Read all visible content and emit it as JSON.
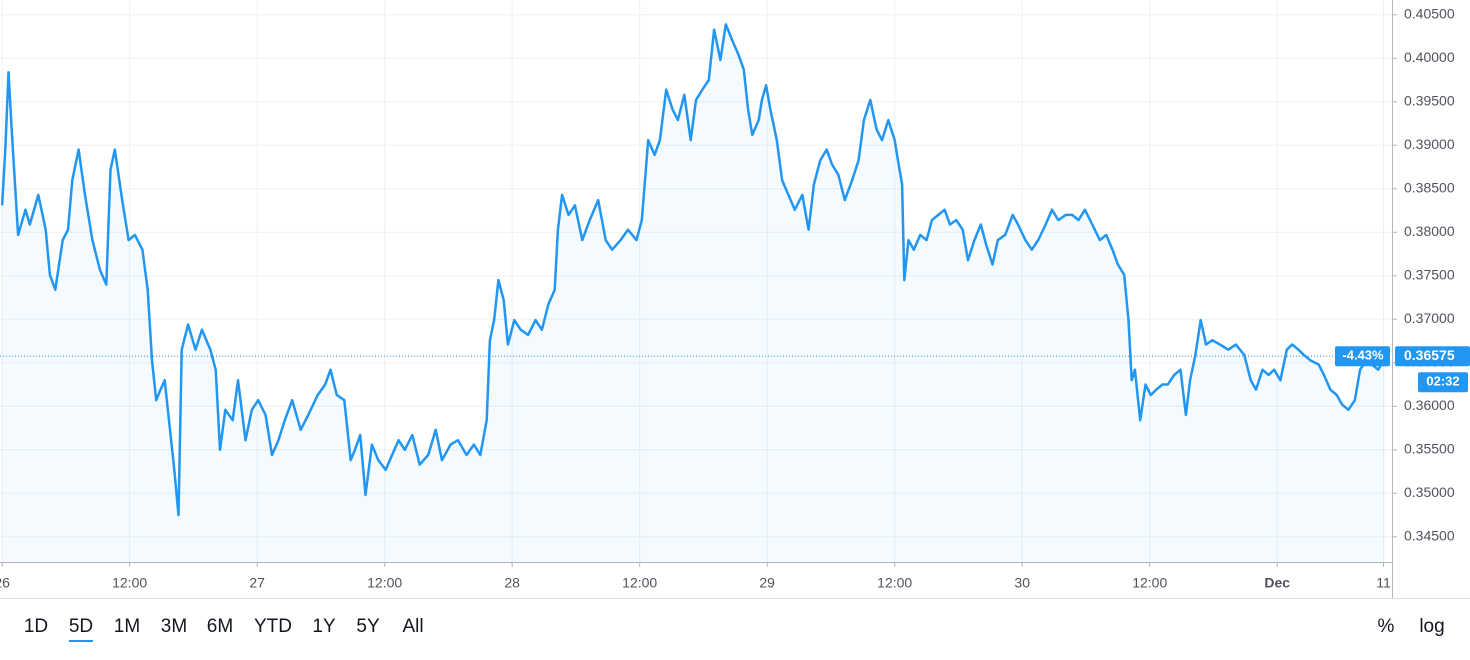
{
  "chart_data": {
    "type": "line",
    "x": [
      0,
      0.3,
      0.6,
      0.9,
      1.5,
      2.2,
      2.6,
      3.4,
      4.1,
      4.5,
      5.0,
      5.7,
      6.2,
      6.6,
      7.2,
      7.8,
      8.5,
      9.2,
      9.8,
      10.2,
      10.6,
      11.3,
      11.9,
      12.5,
      13.2,
      13.7,
      14.1,
      14.5,
      14.9,
      15.3,
      15.8,
      16.2,
      16.6,
      16.9,
      17.5,
      18.2,
      18.8,
      19.6,
      20.1,
      20.5,
      21.0,
      21.7,
      22.2,
      22.9,
      23.5,
      24.1,
      24.8,
      25.4,
      26.0,
      26.6,
      27.3,
      28.1,
      28.8,
      29.7,
      30.4,
      30.9,
      31.5,
      32.2,
      32.8,
      33.2,
      33.7,
      34.2,
      34.8,
      35.4,
      36.1,
      36.7,
      37.3,
      37.9,
      38.6,
      39.3,
      40.1,
      40.8,
      41.4,
      42.2,
      42.9,
      43.7,
      44.4,
      45.0,
      45.6,
      45.9,
      46.3,
      46.7,
      47.2,
      47.6,
      48.2,
      48.8,
      49.5,
      50.2,
      50.8,
      51.4,
      52.0,
      52.3,
      52.7,
      53.3,
      53.9,
      54.6,
      55.3,
      56.1,
      56.8,
      57.4,
      58.2,
      58.9,
      59.7,
      60.2,
      60.8,
      61.4,
      61.9,
      62.5,
      63.1,
      63.6,
      64.2,
      64.8,
      65.3,
      65.9,
      66.5,
      67.0,
      67.6,
      68.1,
      68.7,
      69.3,
      69.8,
      70.2,
      70.6,
      71.2,
      71.5,
      71.9,
      72.3,
      72.9,
      73.4,
      74.0,
      74.6,
      75.3,
      75.9,
      76.4,
      77.0,
      77.6,
      78.1,
      78.7,
      79.3,
      80.0,
      80.6,
      81.1,
      81.7,
      82.3,
      82.8,
      83.4,
      84.0,
      84.3,
      84.7,
      84.9,
      85.3,
      85.8,
      86.4,
      87.0,
      87.5,
      88.1,
      88.7,
      89.2,
      89.8,
      90.4,
      90.9,
      91.5,
      92.1,
      92.6,
      93.2,
      93.7,
      94.4,
      95.1,
      95.6,
      96.3,
      96.9,
      97.5,
      98.2,
      98.8,
      99.4,
      100.1,
      100.7,
      101.3,
      101.9,
      102.6,
      103.3,
      103.9,
      104.5,
      105.0,
      105.6,
      106.0,
      106.3,
      106.6,
      107.1,
      107.6,
      108.1,
      108.6,
      109.2,
      109.7,
      110.3,
      110.9,
      111.4,
      111.8,
      112.3,
      112.8,
      113.3,
      113.9,
      114.6,
      115.4,
      116.1,
      116.9,
      117.5,
      118.0,
      118.6,
      119.2,
      119.7,
      120.3,
      120.9,
      121.4,
      122.0,
      122.5,
      123.1,
      123.9,
      124.4,
      125.0,
      125.6,
      126.1,
      126.7,
      127.3,
      127.8,
      128.4,
      128.9,
      129.5,
      130.2
    ],
    "series": [
      {
        "name": null,
        "color": "#2196f3",
        "values": [
          0.3831,
          0.3895,
          0.3984,
          0.3918,
          0.3797,
          0.3826,
          0.3809,
          0.3843,
          0.3803,
          0.3751,
          0.3734,
          0.3791,
          0.3803,
          0.386,
          0.3895,
          0.3843,
          0.3791,
          0.3757,
          0.374,
          0.3872,
          0.3895,
          0.3837,
          0.3791,
          0.3797,
          0.378,
          0.3734,
          0.3653,
          0.3607,
          0.3619,
          0.363,
          0.3573,
          0.3527,
          0.3475,
          0.3665,
          0.3694,
          0.3665,
          0.3688,
          0.3665,
          0.3642,
          0.355,
          0.3596,
          0.3584,
          0.363,
          0.3561,
          0.3596,
          0.3607,
          0.359,
          0.3544,
          0.3561,
          0.3584,
          0.3607,
          0.3573,
          0.359,
          0.3613,
          0.3625,
          0.3642,
          0.3613,
          0.3607,
          0.3538,
          0.355,
          0.3567,
          0.3498,
          0.3556,
          0.3538,
          0.3527,
          0.3544,
          0.3561,
          0.355,
          0.3567,
          0.3533,
          0.3544,
          0.3573,
          0.3538,
          0.3556,
          0.3561,
          0.3544,
          0.3556,
          0.3544,
          0.3584,
          0.3676,
          0.3699,
          0.3745,
          0.3722,
          0.3671,
          0.3699,
          0.3688,
          0.3682,
          0.3699,
          0.3688,
          0.3717,
          0.3734,
          0.3803,
          0.3843,
          0.382,
          0.3831,
          0.3791,
          0.3814,
          0.3837,
          0.3791,
          0.378,
          0.3791,
          0.3803,
          0.3791,
          0.3814,
          0.3906,
          0.3889,
          0.3906,
          0.3964,
          0.3941,
          0.3929,
          0.3958,
          0.3906,
          0.3952,
          0.3964,
          0.3975,
          0.4033,
          0.3998,
          0.4039,
          0.4021,
          0.4004,
          0.3987,
          0.3941,
          0.3912,
          0.3929,
          0.3952,
          0.3969,
          0.3941,
          0.3906,
          0.386,
          0.3843,
          0.3826,
          0.3843,
          0.3803,
          0.3855,
          0.3883,
          0.3895,
          0.3878,
          0.3866,
          0.3837,
          0.386,
          0.3883,
          0.3929,
          0.3952,
          0.3918,
          0.3906,
          0.3929,
          0.3906,
          0.3883,
          0.3855,
          0.3745,
          0.3791,
          0.378,
          0.3797,
          0.3791,
          0.3814,
          0.382,
          0.3826,
          0.3809,
          0.3814,
          0.3803,
          0.3768,
          0.3791,
          0.3809,
          0.3786,
          0.3763,
          0.3791,
          0.3797,
          0.382,
          0.3809,
          0.3791,
          0.378,
          0.3791,
          0.3809,
          0.3826,
          0.3814,
          0.382,
          0.382,
          0.3814,
          0.3826,
          0.3809,
          0.3791,
          0.3797,
          0.378,
          0.3763,
          0.3751,
          0.3699,
          0.363,
          0.3642,
          0.3584,
          0.3625,
          0.3613,
          0.3619,
          0.3625,
          0.3625,
          0.3636,
          0.3642,
          0.359,
          0.363,
          0.3659,
          0.3699,
          0.3671,
          0.3676,
          0.3671,
          0.3665,
          0.3671,
          0.3659,
          0.363,
          0.3619,
          0.3642,
          0.3636,
          0.3642,
          0.363,
          0.3665,
          0.3671,
          0.3665,
          0.3659,
          0.3653,
          0.3648,
          0.3636,
          0.3619,
          0.3613,
          0.3602,
          0.3596,
          0.3607,
          0.3642,
          0.3653,
          0.3648,
          0.3642,
          0.36575
        ]
      }
    ],
    "xlim": [
      -0.2,
      130.8
    ],
    "xticks": [
      {
        "value": 0,
        "label": "26"
      },
      {
        "value": 12,
        "label": "12:00"
      },
      {
        "value": 24,
        "label": "27"
      },
      {
        "value": 36,
        "label": "12:00"
      },
      {
        "value": 48,
        "label": "28"
      },
      {
        "value": 60,
        "label": "12:00"
      },
      {
        "value": 72,
        "label": "29"
      },
      {
        "value": 84,
        "label": "12:00"
      },
      {
        "value": 96,
        "label": "30"
      },
      {
        "value": 108,
        "label": "12:00"
      },
      {
        "value": 120,
        "label": "Dec"
      },
      {
        "value": 130,
        "label": "11"
      }
    ],
    "ylim": [
      0.3421,
      0.4067
    ],
    "yticks": [
      {
        "value": 0.345,
        "label": "0.34500"
      },
      {
        "value": 0.35,
        "label": "0.35000"
      },
      {
        "value": 0.355,
        "label": "0.35500"
      },
      {
        "value": 0.36,
        "label": "0.36000"
      },
      {
        "value": 0.365,
        "label": "0.36500"
      },
      {
        "value": 0.37,
        "label": "0.37000"
      },
      {
        "value": 0.375,
        "label": "0.37500"
      },
      {
        "value": 0.38,
        "label": "0.38000"
      },
      {
        "value": 0.385,
        "label": "0.38500"
      },
      {
        "value": 0.39,
        "label": "0.39000"
      },
      {
        "value": 0.395,
        "label": "0.39500"
      },
      {
        "value": 0.4,
        "label": "0.40000"
      },
      {
        "value": 0.405,
        "label": "0.40500"
      }
    ],
    "grid": true,
    "change_label": "-4.43%",
    "countdown": "02:32"
  },
  "toolbar": {
    "ranges": [
      "1D",
      "5D",
      "1M",
      "3M",
      "6M",
      "YTD",
      "1Y",
      "5Y",
      "All"
    ],
    "active": 1,
    "percent": "%",
    "log": "log"
  }
}
